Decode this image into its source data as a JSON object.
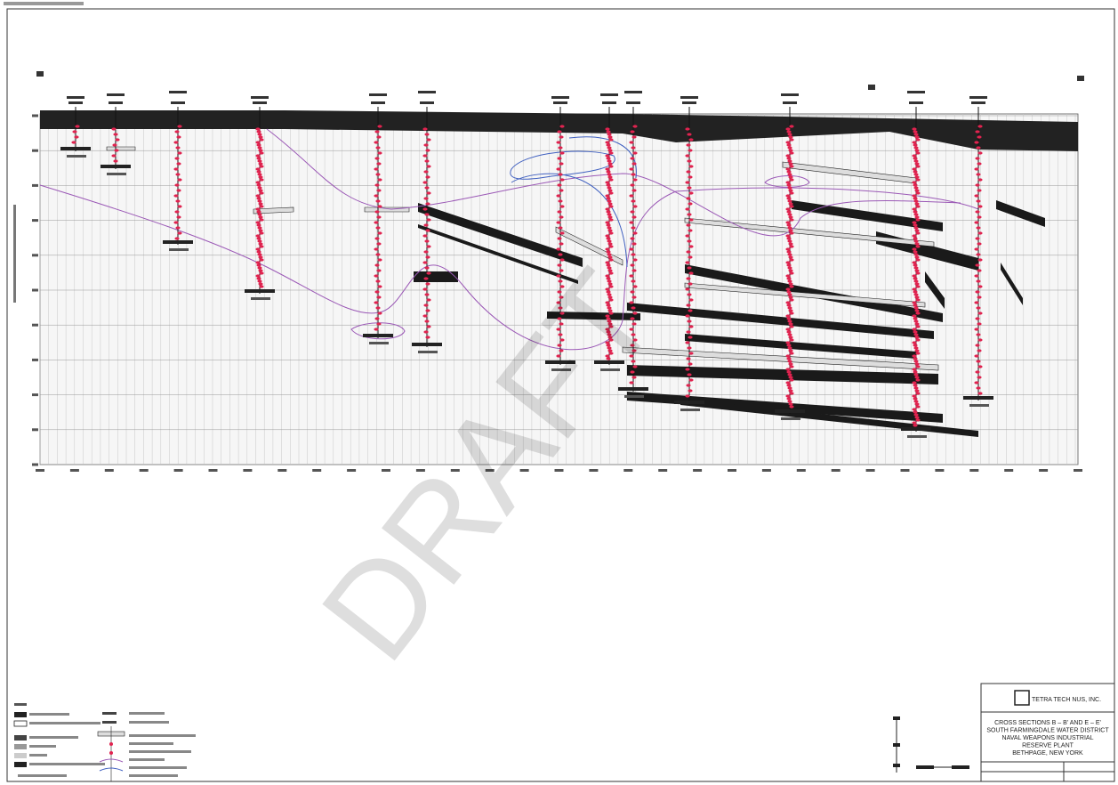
{
  "watermark": "DRAFT",
  "title_block": {
    "company": "TETRA TECH NUS, INC.",
    "title_lines": [
      "CROSS SECTIONS B – B' AND E – E'",
      "SOUTH FARMINGDALE WATER DISTRICT",
      "NAVAL WEAPONS INDUSTRIAL",
      "RESERVE PLANT",
      "BETHPAGE, NEW YORK"
    ]
  }
}
